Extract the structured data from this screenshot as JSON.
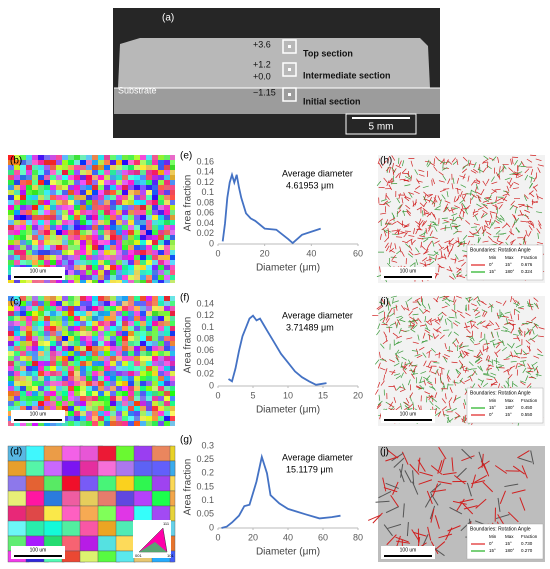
{
  "panel_a": {
    "label": "(a)",
    "heights": [
      "+3.6",
      "+1.2",
      "+0.0",
      "−1.15"
    ],
    "substrate": "Substrate",
    "sections": [
      "Top section",
      "Intermediate section",
      "Initial section"
    ],
    "scale_bar": "5 mm"
  },
  "maps": [
    {
      "label": "(b)",
      "scale_bar": "100 um"
    },
    {
      "label": "(c)",
      "scale_bar": "100 um"
    },
    {
      "label": "(d)",
      "scale_bar": "100 um",
      "ipf": [
        "001",
        "101",
        "111"
      ]
    }
  ],
  "boundary_maps": [
    {
      "label": "(h)",
      "scale_bar": "100 um",
      "legend_title": "Boundaries: Rotation Angle",
      "legend_header": [
        "Min",
        "Max",
        "Fraction"
      ],
      "rows": [
        {
          "color": "#e02020",
          "cells": [
            "0°",
            "15°",
            "0.676"
          ]
        },
        {
          "color": "#20b020",
          "cells": [
            "15°",
            "180°",
            "0.324"
          ]
        }
      ]
    },
    {
      "label": "(i)",
      "scale_bar": "100 um",
      "legend_title": "Boundaries: Rotation Angle",
      "legend_header": [
        "Min",
        "Max",
        "Fraction"
      ],
      "rows": [
        {
          "color": "#20b020",
          "cells": [
            "15°",
            "180°",
            "0.450"
          ]
        },
        {
          "color": "#e02020",
          "cells": [
            "0°",
            "15°",
            "0.550"
          ]
        }
      ]
    },
    {
      "label": "(j)",
      "scale_bar": "100 um",
      "legend_title": "Boundaries: Rotation Angle",
      "legend_header": [
        "Min",
        "Max",
        "Fraction"
      ],
      "rows": [
        {
          "color": "#e02020",
          "cells": [
            "0°",
            "15°",
            "0.730"
          ]
        },
        {
          "color": "#20b020",
          "cells": [
            "15°",
            "180°",
            "0.270"
          ]
        }
      ]
    }
  ],
  "chart_data": [
    {
      "type": "line",
      "panel_label": "(e)",
      "annotation": [
        "Average diameter",
        "4.61953 μm"
      ],
      "xlabel": "Diameter (μm)",
      "ylabel": "Area fraction",
      "color": "#4472c4",
      "x": [
        2,
        3,
        4,
        5,
        6,
        7,
        8,
        9,
        10,
        12,
        14,
        16,
        20,
        25,
        30,
        32,
        36,
        44
      ],
      "values": [
        0.005,
        0.04,
        0.09,
        0.12,
        0.135,
        0.12,
        0.135,
        0.11,
        0.09,
        0.06,
        0.05,
        0.045,
        0.03,
        0.028,
        0.01,
        0.002,
        0.018,
        0.03
      ],
      "xlim": [
        0,
        60
      ],
      "xticks": [
        0,
        20,
        40,
        60
      ],
      "ylim": [
        0,
        0.16
      ],
      "yticks": [
        0,
        0.02,
        0.04,
        0.06,
        0.08,
        0.1,
        0.12,
        0.14,
        0.16
      ]
    },
    {
      "type": "line",
      "panel_label": "(f)",
      "annotation": [
        "Average diameter",
        "3.71489 μm"
      ],
      "xlabel": "Diameter (μm)",
      "ylabel": "Area fraction",
      "color": "#4472c4",
      "x": [
        1.5,
        2,
        2.5,
        3,
        3.5,
        4,
        4.5,
        5,
        5.5,
        6,
        6.5,
        7,
        8,
        9,
        10,
        11,
        12,
        13,
        14,
        15,
        15.5
      ],
      "values": [
        0.012,
        0.008,
        0.03,
        0.06,
        0.085,
        0.1,
        0.115,
        0.12,
        0.112,
        0.115,
        0.105,
        0.095,
        0.075,
        0.055,
        0.04,
        0.025,
        0.015,
        0.008,
        0.002,
        0.004,
        0.005
      ],
      "xlim": [
        0,
        20
      ],
      "xticks": [
        0,
        5,
        10,
        15,
        20
      ],
      "ylim": [
        0,
        0.14
      ],
      "yticks": [
        0,
        0.02,
        0.04,
        0.06,
        0.08,
        0.1,
        0.12,
        0.14
      ]
    },
    {
      "type": "line",
      "panel_label": "(g)",
      "annotation": [
        "Average diameter",
        "15.1179 μm"
      ],
      "xlabel": "Diameter (μm)",
      "ylabel": "Area fraction",
      "color": "#4472c4",
      "x": [
        2,
        5,
        8,
        12,
        15,
        18,
        22,
        25,
        28,
        30,
        35,
        40,
        45,
        50,
        58,
        65,
        70
      ],
      "values": [
        0,
        0.005,
        0.02,
        0.045,
        0.08,
        0.085,
        0.17,
        0.26,
        0.2,
        0.12,
        0.09,
        0.07,
        0.06,
        0.05,
        0.035,
        0.04,
        0.045
      ],
      "xlim": [
        0,
        80
      ],
      "xticks": [
        0,
        20,
        40,
        60,
        80
      ],
      "ylim": [
        0,
        0.3
      ],
      "yticks": [
        0,
        0.05,
        0.1,
        0.15,
        0.2,
        0.25,
        0.3
      ]
    }
  ]
}
